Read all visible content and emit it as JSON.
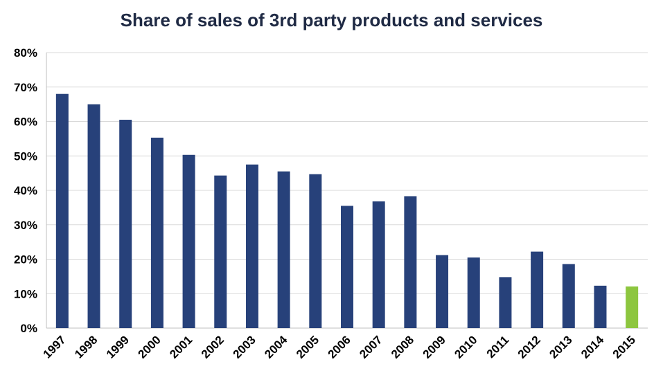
{
  "chart_data": {
    "type": "bar",
    "title": "Share of sales of 3rd party products and services",
    "xlabel": "",
    "ylabel": "",
    "ylim": [
      0,
      80
    ],
    "y_ticks": [
      "0%",
      "10%",
      "20%",
      "30%",
      "40%",
      "50%",
      "60%",
      "70%",
      "80%"
    ],
    "grid": true,
    "categories": [
      "1997",
      "1998",
      "1999",
      "2000",
      "2001",
      "2002",
      "2003",
      "2004",
      "2005",
      "2006",
      "2007",
      "2008",
      "2009",
      "2010",
      "2011",
      "2012",
      "2013",
      "2014",
      "2015"
    ],
    "values": [
      68,
      65,
      60.5,
      55.3,
      50.3,
      44.3,
      47.5,
      45.5,
      44.7,
      35.5,
      36.8,
      38.3,
      21.2,
      20.5,
      14.8,
      22.2,
      18.6,
      12.3,
      12.1
    ],
    "colors": {
      "default": "#27417a",
      "highlight": "#8dc63f",
      "grid": "#d9d9d9",
      "axis": "#bfbfbf"
    },
    "highlight_categories": [
      "2015"
    ]
  }
}
